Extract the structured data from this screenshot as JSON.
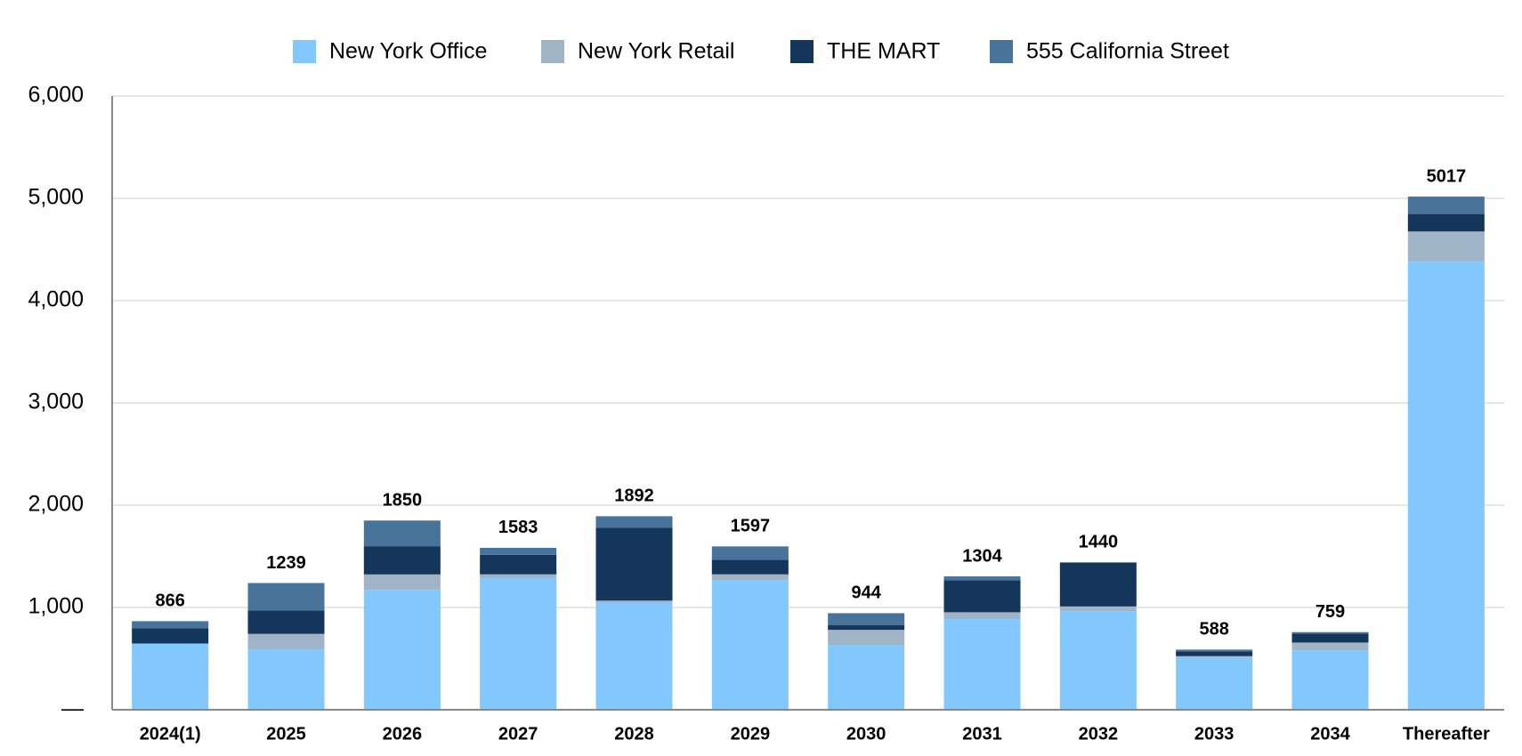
{
  "chart_data": {
    "type": "stacked-bar",
    "categories": [
      "2024(1)",
      "2025",
      "2026",
      "2027",
      "2028",
      "2029",
      "2030",
      "2031",
      "2032",
      "2033",
      "2034",
      "Thereafter"
    ],
    "series": [
      {
        "name": "New York Office",
        "color": "#82c8fc",
        "values": [
          648,
          590,
          1171,
          1286,
          1048,
          1267,
          629,
          886,
          962,
          514,
          581,
          4381
        ]
      },
      {
        "name": "New York Retail",
        "color": "#a0b4c8",
        "values": [
          0,
          152,
          152,
          38,
          19,
          57,
          152,
          67,
          48,
          10,
          76,
          295
        ]
      },
      {
        "name": "THE MART",
        "color": "#14365a",
        "values": [
          150,
          229,
          276,
          190,
          714,
          143,
          48,
          314,
          430,
          48,
          86,
          171
        ]
      },
      {
        "name": "555 California Street",
        "color": "#48739a",
        "values": [
          68,
          268,
          251,
          69,
          111,
          130,
          115,
          37,
          0,
          16,
          16,
          170
        ]
      }
    ],
    "totals": [
      866,
      1239,
      1850,
      1583,
      1892,
      1597,
      944,
      1304,
      1440,
      588,
      759,
      5017
    ],
    "ylim": [
      0,
      6000
    ],
    "yticks": [
      {
        "value": 0,
        "label": "—"
      },
      {
        "value": 1000,
        "label": "1,000"
      },
      {
        "value": 2000,
        "label": "2,000"
      },
      {
        "value": 3000,
        "label": "3,000"
      },
      {
        "value": 4000,
        "label": "4,000"
      },
      {
        "value": 5000,
        "label": "5,000"
      },
      {
        "value": 6000,
        "label": "6,000"
      }
    ],
    "grid": true,
    "legend": "top"
  }
}
